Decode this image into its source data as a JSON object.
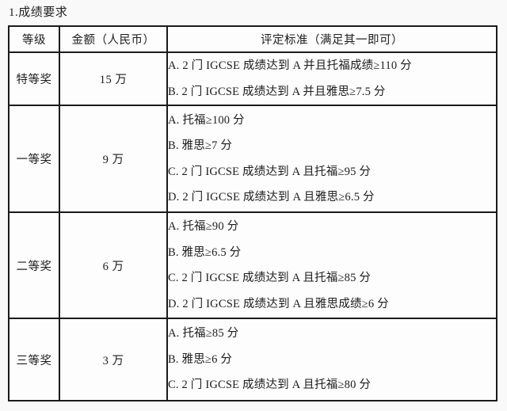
{
  "page": {
    "title": "1.成绩要求",
    "background_color": "#f9f9f9",
    "border_color": "#1b1b1b",
    "text_color": "#1c1c1c"
  },
  "table": {
    "headers": {
      "level": "等级",
      "amount": "金额（人民币）",
      "criteria": "评定标准（满足其一即可）"
    },
    "rows": [
      {
        "level": "特等奖",
        "amount": "15 万",
        "criteria": [
          "A. 2 门 IGCSE 成绩达到 A 并且托福成绩≥110 分",
          "B. 2 门 IGCSE 成绩达到 A 并且雅思≥7.5 分"
        ]
      },
      {
        "level": "一等奖",
        "amount": "9 万",
        "criteria": [
          "A. 托福≥100 分",
          "B. 雅思≥7 分",
          "C. 2 门 IGCSE 成绩达到 A 且托福≥95 分",
          "D. 2 门 IGCSE 成绩达到 A 且雅思≥6.5 分"
        ]
      },
      {
        "level": "二等奖",
        "amount": "6 万",
        "criteria": [
          "A. 托福≥90 分",
          "B. 雅思≥6.5 分",
          "C. 2 门 IGCSE 成绩达到 A 且托福≥85 分",
          "D. 2 门 IGCSE 成绩达到 A 且雅思成绩≥6 分"
        ]
      },
      {
        "level": "三等奖",
        "amount": "3 万",
        "criteria": [
          "A. 托福≥85 分",
          "B. 雅思≥6 分",
          "C. 2 门 IGCSE 成绩达到 A 且托福≥80 分"
        ]
      }
    ]
  }
}
